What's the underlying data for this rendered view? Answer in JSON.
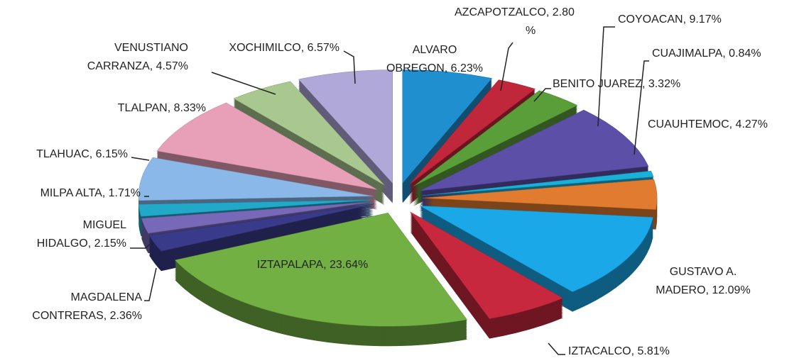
{
  "chart_data": {
    "type": "pie",
    "values": [
      6.23,
      2.8,
      3.32,
      9.17,
      0.84,
      4.27,
      12.09,
      5.81,
      23.64,
      2.36,
      2.15,
      1.71,
      6.15,
      8.33,
      4.57,
      6.57
    ],
    "value_labels": [
      [
        "ALVARO",
        "OBREGON, 6.23%"
      ],
      [
        "AZCAPOTZALCO, 2.80",
        "%"
      ],
      [
        "BENITO JUAREZ, 3.32%"
      ],
      [
        "COYOACAN, 9.17%"
      ],
      [
        "CUAJIMALPA, 0.84%"
      ],
      [
        "CUAUHTEMOC, 4.27%"
      ],
      [
        "GUSTAVO A.",
        "MADERO, 12.09%"
      ],
      [
        "IZTACALCO, 5.81%"
      ],
      [
        "IZTAPALAPA, 23.64%"
      ],
      [
        "MAGDALENA",
        "CONTRERAS, 2.36%"
      ],
      [
        "MIGUEL",
        "HIDALGO, 2.15%"
      ],
      [
        "MILPA ALTA, 1.71%"
      ],
      [
        "TLAHUAC, 6.15%"
      ],
      [
        "TLALPAN, 8.33%"
      ],
      [
        "VENUSTIANO",
        "CARRANZA, 4.57%"
      ],
      [
        "XOCHIMILCO, 6.57%"
      ]
    ],
    "colors": [
      "#1f8fd0",
      "#c0273a",
      "#5a9e3a",
      "#5b4fa8",
      "#1ab0d8",
      "#e07b30",
      "#1aa8e8",
      "#c8283e",
      "#72b043",
      "#3a3a8a",
      "#7868b8",
      "#22a8c8",
      "#8ab8e8",
      "#e8a0b8",
      "#a8c890",
      "#b0a8d8"
    ]
  }
}
